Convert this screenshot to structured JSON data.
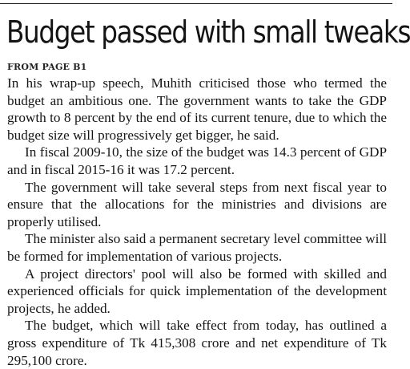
{
  "article": {
    "headline": "Budget passed with small tweaks",
    "jump_line": "FROM PAGE B1",
    "paragraphs": [
      "In his wrap-up speech, Muhith criticised those who termed the budget an ambitious one. The government wants to take the GDP growth to 8 percent by the end of its current tenure, due to which the budget size will progressively get bigger, he said.",
      "In fiscal 2009-10, the size of the budget was 14.3 percent of GDP and in fiscal 2015-16 it was 17.2 percent.",
      "The government will take several steps from next fiscal year to ensure that the allocations for the ministries and divisions are properly utilised.",
      "The minister also said a permanent secretary level committee will be formed for implementation of various projects.",
      "A project directors' pool will also be formed with skilled and experienced officials for quick implementation of the development projects, he added.",
      "The budget, which will take effect from today, has outlined a gross expenditure of Tk 415,308 crore and net expenditure of Tk 295,100 crore."
    ]
  }
}
